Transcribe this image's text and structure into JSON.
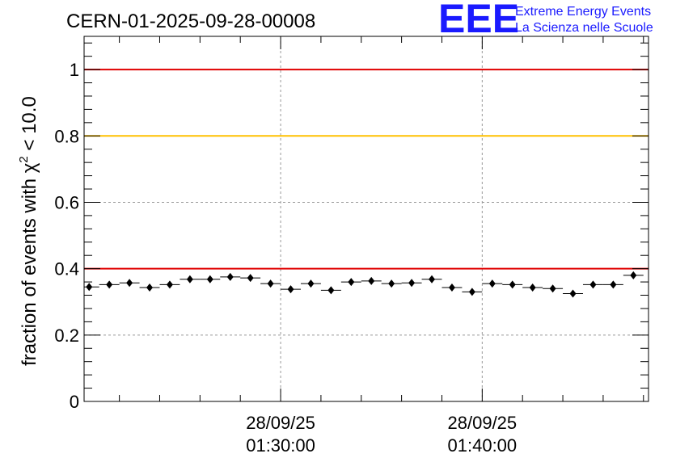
{
  "header": {
    "title": "CERN-01-2025-09-28-00008",
    "logo_letters": "EEE",
    "logo_line1": "Extreme Energy Events",
    "logo_line2": "La Scienza nelle Scuole"
  },
  "colors": {
    "marker": "#000000",
    "red_threshold": "#e00000",
    "yellow_threshold": "#ffc000",
    "logo": "#1a1aff",
    "grid": "#999999"
  },
  "chart_data": {
    "type": "scatter",
    "title": "CERN-01-2025-09-28-00008",
    "ylabel": "fraction of events with χ² < 10.0",
    "ylabel_main": "fraction of events with χ",
    "ylabel_sup": "2",
    "ylabel_tail": " < 10.0",
    "xlabel": "",
    "ylim": [
      0,
      1.1
    ],
    "yticks": [
      0,
      0.2,
      0.4,
      0.6,
      0.8,
      1
    ],
    "ytick_labels": [
      "0",
      "0.2",
      "0.4",
      "0.6",
      "0.8",
      "1"
    ],
    "xlim": [
      "2025-09-28 01:20:15",
      "2025-09-28 01:48:15"
    ],
    "xticks": [
      "2025-09-28 01:30:00",
      "2025-09-28 01:40:00"
    ],
    "xtick_labels": [
      {
        "date": "28/09/25",
        "time": "01:30:00"
      },
      {
        "date": "28/09/25",
        "time": "01:40:00"
      }
    ],
    "grid": true,
    "reference_lines": [
      {
        "y": 1.0,
        "color": "#e00000"
      },
      {
        "y": 0.8,
        "color": "#ffc000"
      },
      {
        "y": 0.4,
        "color": "#e00000"
      }
    ],
    "series": [
      {
        "x": [
          "01:20:30",
          "01:21:30",
          "01:22:30",
          "01:23:30",
          "01:24:30",
          "01:25:30",
          "01:26:30",
          "01:27:30",
          "01:28:30",
          "01:29:30",
          "01:30:30",
          "01:31:30",
          "01:32:30",
          "01:33:30",
          "01:34:30",
          "01:35:30",
          "01:36:30",
          "01:37:30",
          "01:38:30",
          "01:39:30",
          "01:40:30",
          "01:41:30",
          "01:42:30",
          "01:43:30",
          "01:44:30",
          "01:45:30",
          "01:46:30",
          "01:47:30"
        ],
        "values": [
          0.345,
          0.352,
          0.357,
          0.343,
          0.352,
          0.368,
          0.368,
          0.375,
          0.372,
          0.355,
          0.338,
          0.355,
          0.335,
          0.36,
          0.363,
          0.355,
          0.357,
          0.368,
          0.343,
          0.33,
          0.355,
          0.352,
          0.343,
          0.34,
          0.325,
          0.352,
          0.352,
          0.38
        ],
        "x_halfwidth_seconds": 30,
        "y_error": 0.006
      }
    ]
  }
}
